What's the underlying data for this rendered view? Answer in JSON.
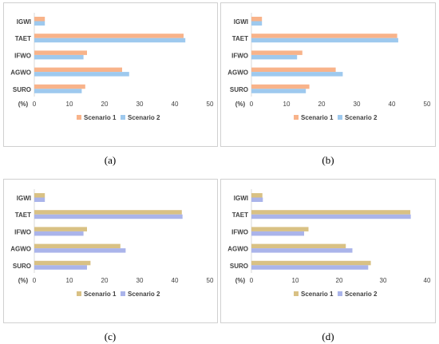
{
  "colors": {
    "s1_top": "#f8b38a",
    "s2_top": "#9ec9ee",
    "s1_bottom": "#d9c184",
    "s2_bottom": "#aab4ea",
    "axis": "#d9d9d9",
    "text": "#404040"
  },
  "chart_data": [
    {
      "type": "bar",
      "orientation": "horizontal",
      "caption": "(a)",
      "categories": [
        "IGWI",
        "TAET",
        "IFWO",
        "AGWO",
        "SURO"
      ],
      "unit_label": "(%)",
      "xlim": [
        0,
        50
      ],
      "ticks": [
        0,
        10,
        20,
        30,
        40,
        50
      ],
      "legend_position": "bottom",
      "series": [
        {
          "name": "Scenario 1",
          "values": [
            3,
            42.5,
            15,
            25,
            14.5
          ]
        },
        {
          "name": "Scenario 2",
          "values": [
            3,
            43,
            14,
            27,
            13.5
          ]
        }
      ]
    },
    {
      "type": "bar",
      "orientation": "horizontal",
      "caption": "(b)",
      "categories": [
        "IGWI",
        "TAET",
        "IFWO",
        "AGWO",
        "SURO"
      ],
      "unit_label": "(%)",
      "xlim": [
        0,
        50
      ],
      "ticks": [
        0,
        10,
        20,
        30,
        40,
        50
      ],
      "legend_position": "bottom",
      "series": [
        {
          "name": "Scenario 1",
          "values": [
            3,
            41.5,
            14.5,
            24,
            16.5
          ]
        },
        {
          "name": "Scenario 2",
          "values": [
            3,
            41.8,
            13,
            26,
            15.5
          ]
        }
      ]
    },
    {
      "type": "bar",
      "orientation": "horizontal",
      "caption": "(c)",
      "categories": [
        "IGWI",
        "TAET",
        "IFWO",
        "AGWO",
        "SURO"
      ],
      "unit_label": "(%)",
      "xlim": [
        0,
        50
      ],
      "ticks": [
        0,
        10,
        20,
        30,
        40,
        50
      ],
      "legend_position": "bottom",
      "series": [
        {
          "name": "Scenario 1",
          "values": [
            3,
            42,
            15,
            24.5,
            16
          ]
        },
        {
          "name": "Scenario 2",
          "values": [
            3,
            42.2,
            14,
            26,
            15
          ]
        }
      ]
    },
    {
      "type": "bar",
      "orientation": "horizontal",
      "caption": "(d)",
      "categories": [
        "IGWI",
        "TAET",
        "IFWO",
        "AGWO",
        "SURO"
      ],
      "unit_label": "(%)",
      "xlim": [
        0,
        40
      ],
      "ticks": [
        0,
        10,
        20,
        30,
        40
      ],
      "legend_position": "bottom",
      "series": [
        {
          "name": "Scenario 1",
          "values": [
            2.5,
            36.2,
            13,
            21.5,
            27.2
          ]
        },
        {
          "name": "Scenario 2",
          "values": [
            2.6,
            36.3,
            12,
            23,
            26.6
          ]
        }
      ]
    }
  ]
}
